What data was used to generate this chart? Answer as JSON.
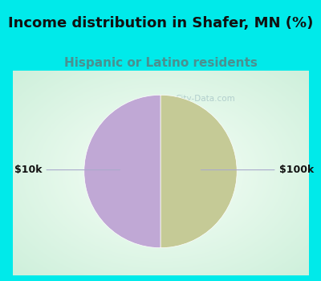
{
  "title": "Income distribution in Shafer, MN (%)",
  "subtitle": "Hispanic or Latino residents",
  "slices": [
    50,
    50
  ],
  "slice_colors": [
    "#c5ca96",
    "#c0a8d5"
  ],
  "labels": [
    "$10k",
    "$100k"
  ],
  "bg_cyan": "#00eaea",
  "title_color": "#111111",
  "title_fontsize": 13,
  "subtitle_color": "#4a9090",
  "subtitle_fontsize": 11,
  "watermark_text": "City-Data.com",
  "watermark_color": "#aac8c8",
  "label_color": "#111111",
  "label_fontsize": 9,
  "line_color": "#aaaacc"
}
